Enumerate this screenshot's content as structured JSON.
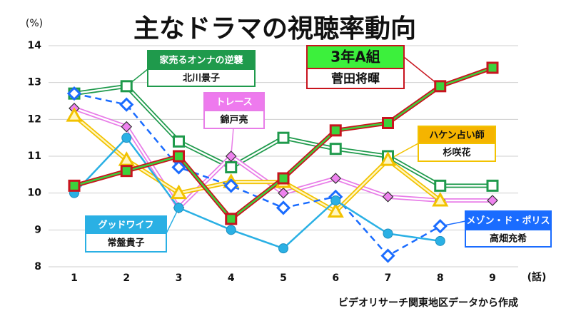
{
  "chart_data": {
    "type": "line",
    "title": "主なドラマの視聴率動向",
    "y_label": "(%)",
    "x_label": "(話)",
    "note": "ビデオリサーチ関東地区データから作成",
    "categories": [
      "1",
      "2",
      "3",
      "4",
      "5",
      "6",
      "7",
      "8",
      "9"
    ],
    "ylim": [
      8,
      14
    ],
    "yticks": [
      8,
      9,
      10,
      11,
      12,
      13,
      14
    ],
    "grid": true,
    "series": [
      {
        "name": "家売るオンナの逆襲",
        "cast": "北川景子",
        "color": "#1f9a4c",
        "inner_color": "#ffffff",
        "marker": "square",
        "marker_fill": "#ffffff",
        "header_color": "#1f9a4c",
        "header_text_color": "#ffffff",
        "values": [
          12.7,
          12.9,
          11.4,
          10.7,
          11.5,
          11.2,
          11.0,
          10.2,
          10.2
        ]
      },
      {
        "name": "トレース",
        "cast": "錦戸亮",
        "color": "#e87de8",
        "inner_color": "#ffffff",
        "marker": "diamond",
        "marker_fill": "#ee82ee",
        "header_color": "#ee7aee",
        "header_text_color": "#ffffff",
        "values": [
          12.3,
          11.8,
          9.6,
          11.0,
          10.0,
          10.4,
          9.9,
          9.8,
          9.8
        ]
      },
      {
        "name": "ハケン占い師",
        "cast": "杉咲花",
        "color": "#f2c200",
        "inner_color": "#fff6c0",
        "marker": "triangle",
        "marker_fill": "#fff6c0",
        "header_color": "#f5b400",
        "header_text_color": "#111111",
        "values": [
          12.1,
          10.9,
          10.0,
          10.3,
          10.3,
          9.5,
          10.9,
          9.8,
          null
        ]
      },
      {
        "name": "メゾン・ド・ポリス",
        "cast": "高畑充希",
        "color": "#1a6cff",
        "marker": "diamond",
        "marker_fill": "#ffffff",
        "dashed": true,
        "header_color": "#1a6cff",
        "header_text_color": "#ffffff",
        "values": [
          12.7,
          12.4,
          10.7,
          10.2,
          9.6,
          9.9,
          8.3,
          9.1,
          null
        ]
      },
      {
        "name": "グッドワイフ",
        "cast": "常盤貴子",
        "color": "#2ab0e4",
        "marker": "circle",
        "marker_fill": "#2ab0e4",
        "header_color": "#2ab0e4",
        "header_text_color": "#ffffff",
        "values": [
          10.0,
          11.5,
          9.6,
          9.0,
          8.5,
          9.8,
          8.9,
          8.7,
          null
        ]
      },
      {
        "name": "3年A組",
        "cast": "菅田将暉",
        "color": "#c8141e",
        "inner_color": "#3cd23c",
        "marker": "square",
        "marker_fill": "#3cd23c",
        "header_color": "#3cf03c",
        "header_text_color": "#111111",
        "values": [
          10.2,
          10.6,
          11.0,
          9.3,
          10.4,
          11.7,
          11.9,
          12.9,
          13.4
        ]
      }
    ]
  }
}
